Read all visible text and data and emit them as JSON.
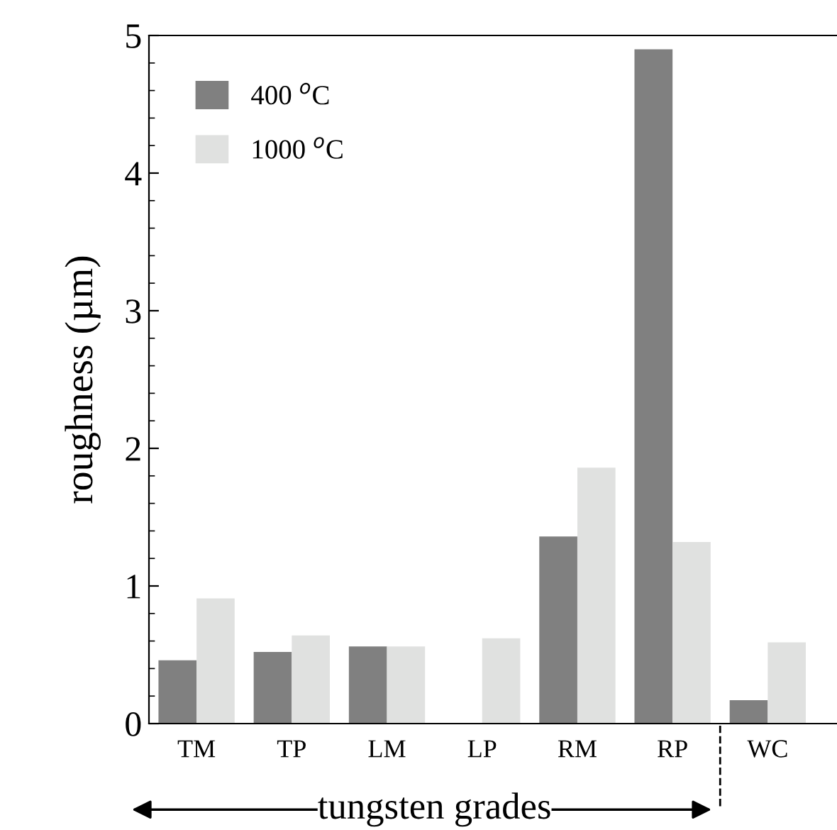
{
  "chart_data": {
    "type": "bar",
    "ylabel": "roughness (µm)",
    "categories": [
      "TM",
      "TP",
      "LM",
      "LP",
      "RM",
      "RP",
      "WC"
    ],
    "series": [
      {
        "name": "400 $^{o}$C",
        "color": "#808080",
        "values": [
          0.46,
          0.52,
          0.56,
          null,
          1.36,
          4.9,
          0.17
        ]
      },
      {
        "name": "1000 $^{o}$C",
        "color": "#e0e1e0",
        "values": [
          0.91,
          0.64,
          0.56,
          0.62,
          1.86,
          1.32,
          0.59
        ]
      }
    ],
    "ylim": [
      0,
      5
    ],
    "yticks": [
      0,
      1,
      2,
      3,
      4,
      5
    ],
    "annotations": [
      "tungsten grades"
    ],
    "grid": false,
    "legend": "top left"
  }
}
